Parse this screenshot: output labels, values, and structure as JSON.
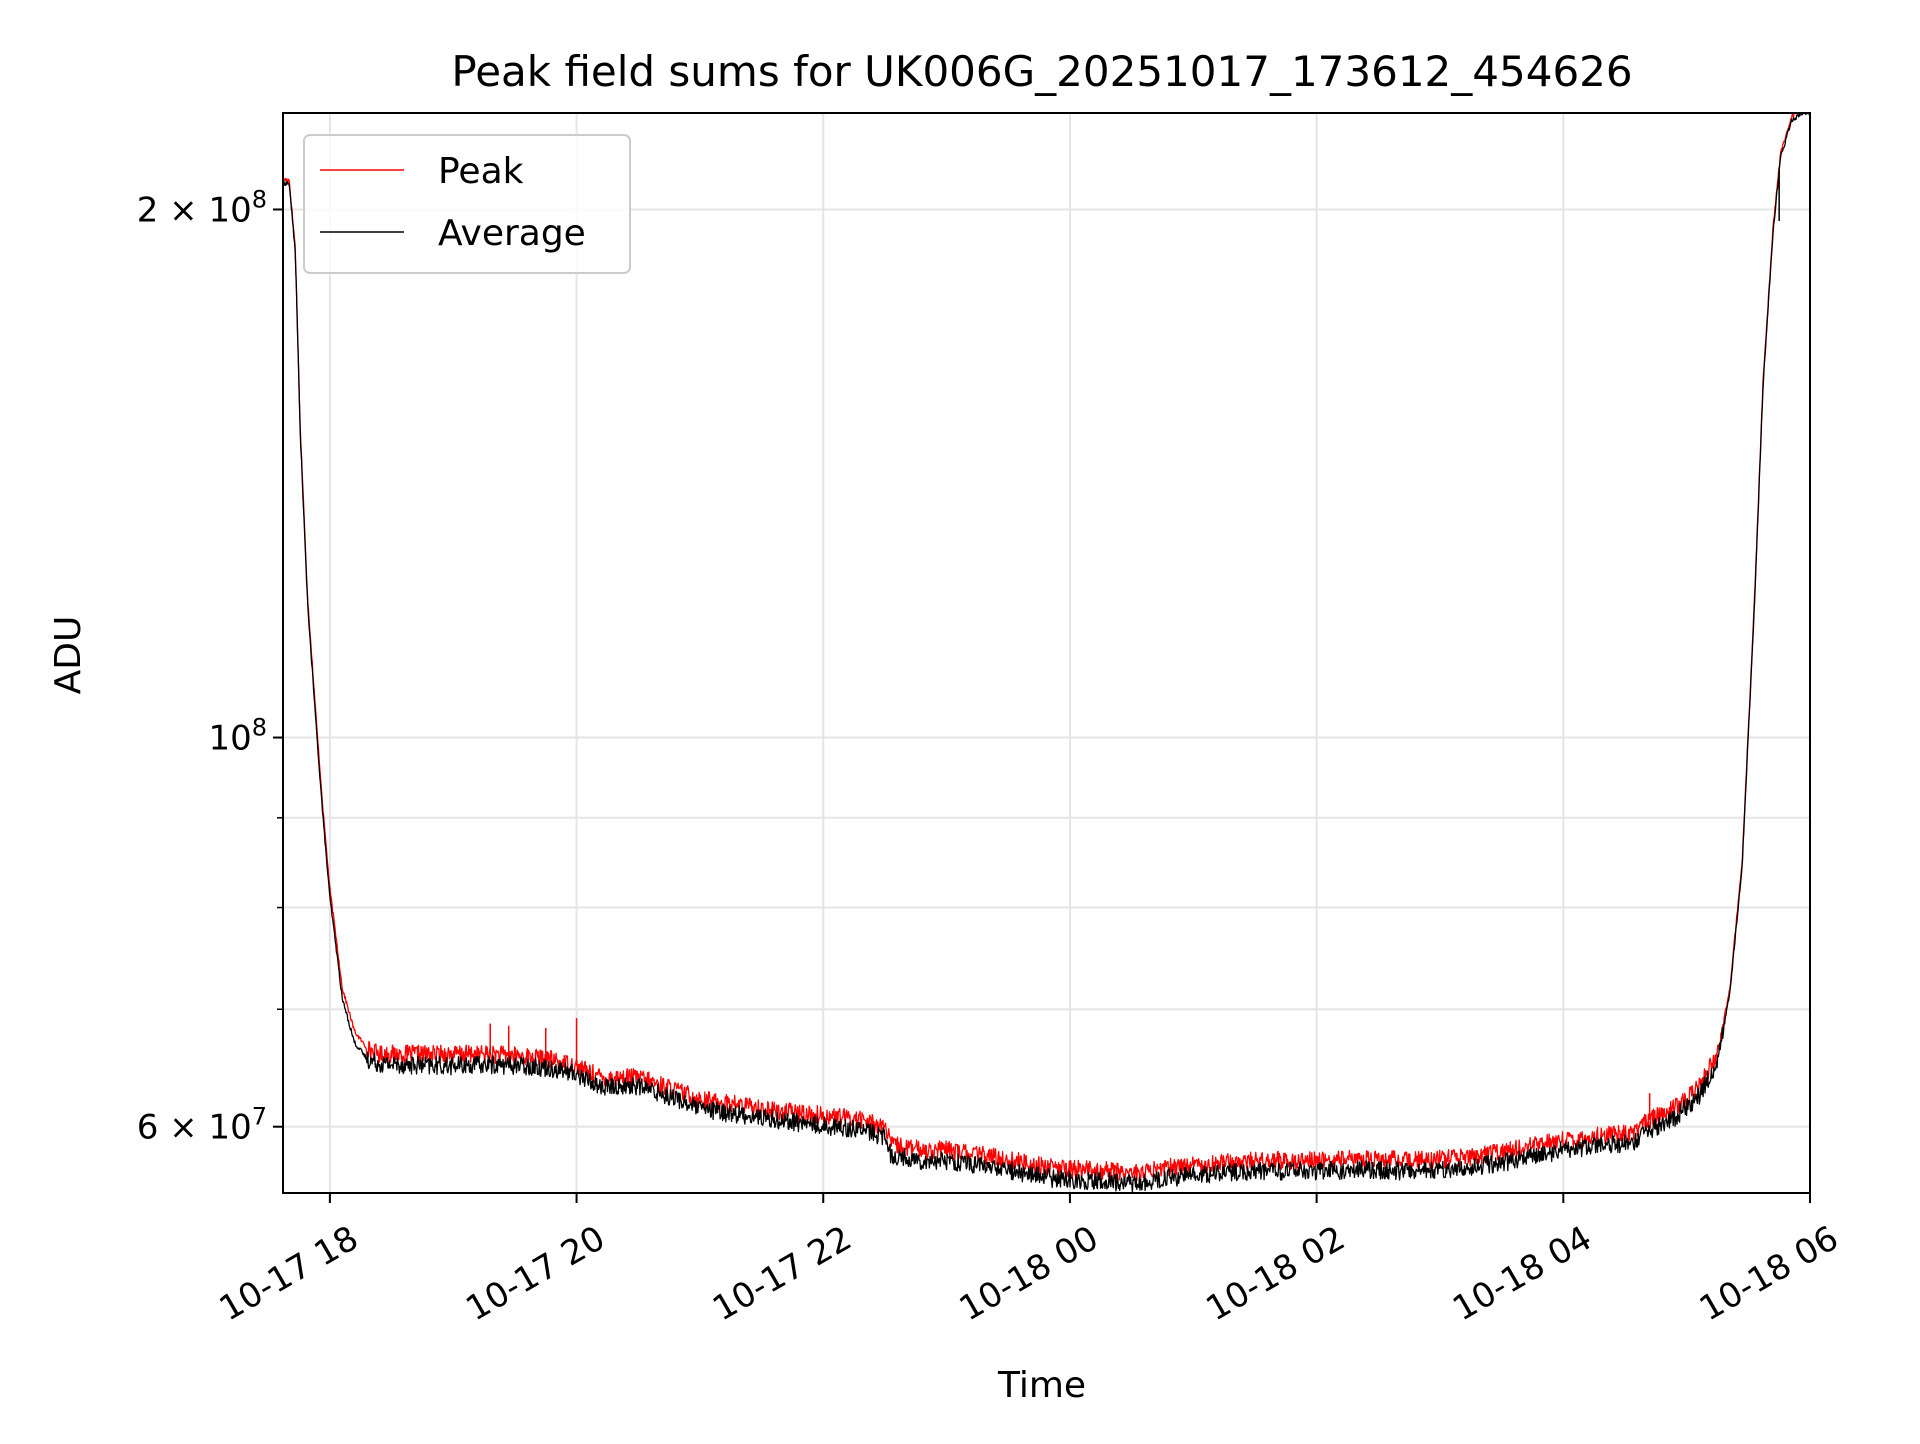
{
  "chart_data": {
    "type": "line",
    "title": "Peak field sums for UK006G_20251017_173612_454626",
    "xlabel": "Time",
    "ylabel": "ADU",
    "yscale": "log",
    "grid": true,
    "legend_position": "top-left",
    "x_unit": "hours since 10-17 00:00",
    "xlim": [
      17.62,
      30.0
    ],
    "ylim": [
      55000000,
      227000000
    ],
    "x_ticks": [
      {
        "value": 18,
        "label": "10-17 18"
      },
      {
        "value": 20,
        "label": "10-17 20"
      },
      {
        "value": 22,
        "label": "10-17 22"
      },
      {
        "value": 24,
        "label": "10-18 00"
      },
      {
        "value": 26,
        "label": "10-18 02"
      },
      {
        "value": 28,
        "label": "10-18 04"
      },
      {
        "value": 30,
        "label": "10-18 06"
      }
    ],
    "y_ticks": [
      {
        "value": 200000000,
        "label": "2 × 10⁸",
        "mantissa": "2",
        "base": "10",
        "exp": "8"
      },
      {
        "value": 100000000,
        "label": "10⁸",
        "mantissa": "",
        "base": "10",
        "exp": "8"
      },
      {
        "value": 60000000,
        "label": "6 × 10⁷",
        "mantissa": "6",
        "base": "10",
        "exp": "7"
      }
    ],
    "y_minor_ticks": [
      70000000,
      80000000,
      90000000
    ],
    "series": [
      {
        "name": "Peak",
        "color": "#ff0000",
        "x": [
          17.62,
          17.67,
          17.72,
          17.76,
          17.82,
          17.9,
          17.95,
          18.0,
          18.05,
          18.1,
          18.2,
          18.3,
          18.4,
          18.6,
          18.8,
          19.0,
          19.3,
          19.6,
          19.8,
          20.0,
          20.2,
          20.5,
          20.8,
          21.0,
          21.3,
          21.6,
          21.9,
          22.1,
          22.3,
          22.5,
          22.55,
          22.8,
          23.0,
          23.3,
          23.6,
          23.9,
          24.2,
          24.6,
          24.8,
          25.0,
          25.3,
          25.6,
          26.0,
          26.4,
          26.8,
          27.2,
          27.6,
          28.0,
          28.4,
          28.6,
          28.65,
          28.9,
          29.1,
          29.25,
          29.35,
          29.45,
          29.55,
          29.62,
          29.7,
          29.76,
          29.85,
          29.95,
          30.0
        ],
        "y": [
          208000000,
          208000000,
          190000000,
          150000000,
          120000000,
          100000000,
          90000000,
          82000000,
          77000000,
          72000000,
          68000000,
          66500000,
          66000000,
          66000000,
          66000000,
          66000000,
          66000000,
          65800000,
          65500000,
          65000000,
          64000000,
          64000000,
          63000000,
          62200000,
          61800000,
          61300000,
          61000000,
          60800000,
          60600000,
          60000000,
          58600000,
          58200000,
          58200000,
          57800000,
          57300000,
          56800000,
          56700000,
          56500000,
          56900000,
          57100000,
          57300000,
          57400000,
          57400000,
          57500000,
          57400000,
          57600000,
          58200000,
          59000000,
          59400000,
          59600000,
          60300000,
          61500000,
          63200000,
          66000000,
          72000000,
          85000000,
          120000000,
          160000000,
          195000000,
          215000000,
          226000000,
          228000000,
          228000000
        ]
      },
      {
        "name": "Average",
        "color": "#000000",
        "x": [
          17.62,
          17.67,
          17.72,
          17.76,
          17.82,
          17.9,
          17.95,
          18.0,
          18.05,
          18.1,
          18.2,
          18.3,
          18.4,
          18.6,
          18.8,
          19.0,
          19.3,
          19.6,
          19.8,
          20.0,
          20.2,
          20.5,
          20.8,
          21.0,
          21.3,
          21.6,
          21.9,
          22.1,
          22.3,
          22.5,
          22.55,
          22.8,
          23.0,
          23.3,
          23.6,
          23.9,
          24.2,
          24.6,
          24.8,
          25.0,
          25.3,
          25.6,
          26.0,
          26.4,
          26.8,
          27.2,
          27.6,
          28.0,
          28.4,
          28.6,
          28.65,
          28.9,
          29.1,
          29.25,
          29.35,
          29.45,
          29.55,
          29.62,
          29.7,
          29.76,
          29.85,
          29.95,
          30.0
        ],
        "y": [
          207000000,
          207000000,
          189000000,
          149000000,
          119000000,
          99000000,
          89000000,
          81000000,
          76000000,
          71000000,
          67000000,
          65600000,
          65200000,
          65100000,
          65000000,
          65000000,
          65100000,
          65000000,
          64800000,
          64300000,
          63200000,
          63300000,
          62300000,
          61400000,
          61000000,
          60600000,
          60200000,
          60000000,
          59800000,
          59200000,
          57800000,
          57400000,
          57400000,
          57000000,
          56500000,
          56000000,
          55900000,
          55700000,
          56100000,
          56300000,
          56500000,
          56600000,
          56600000,
          56700000,
          56600000,
          56800000,
          57400000,
          58200000,
          58600000,
          58800000,
          59500000,
          60700000,
          62500000,
          65300000,
          71500000,
          84500000,
          119000000,
          159000000,
          194000000,
          214000000,
          225000000,
          227000000,
          227000000
        ]
      }
    ],
    "spikes": [
      {
        "series": "Peak",
        "x": 19.3,
        "y": 68700000
      },
      {
        "series": "Peak",
        "x": 19.45,
        "y": 68500000
      },
      {
        "series": "Peak",
        "x": 19.75,
        "y": 68300000
      },
      {
        "series": "Peak",
        "x": 20.0,
        "y": 69200000
      },
      {
        "series": "Peak",
        "x": 28.7,
        "y": 62700000
      },
      {
        "series": "Average",
        "x": 29.75,
        "y": 197000000
      }
    ]
  }
}
